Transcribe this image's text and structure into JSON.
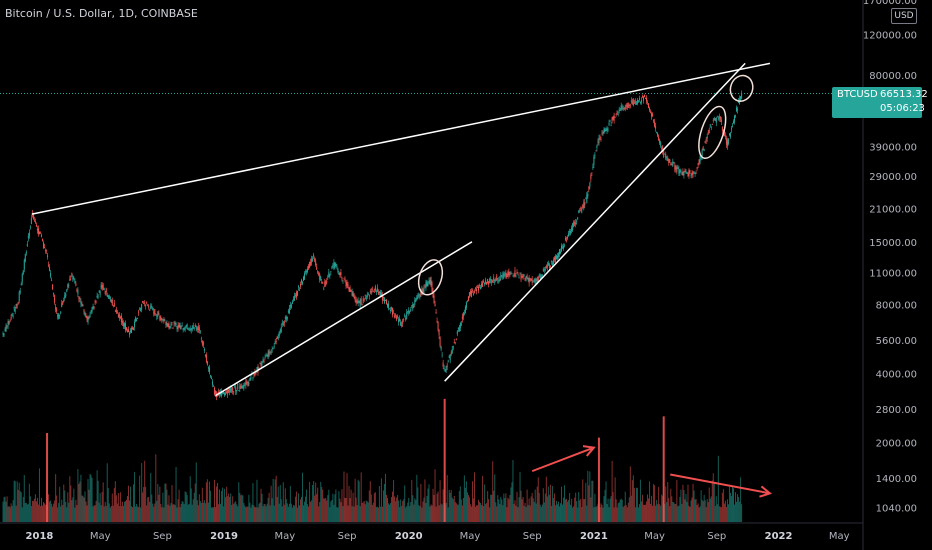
{
  "title": "Bitcoin / U.S. Dollar, 1D, COINBASE",
  "currency": "USD",
  "price_tag": {
    "symbol": "BTCUSD",
    "price": "66513.32",
    "countdown": "05:06:23"
  },
  "colors": {
    "up": "#26a69a",
    "down": "#ef5350",
    "trendline": "#ffffff",
    "arrow": "#f04f4f",
    "price_line": "#26a69a"
  },
  "chart_data": {
    "type": "candlestick",
    "title": "Bitcoin / U.S. Dollar, 1D, COINBASE",
    "y_scale": "log",
    "ylim": [
      900,
      170000
    ],
    "y_ticks": [
      "170000.00",
      "120000.00",
      "80000.00",
      "55000.00",
      "39000.00",
      "29000.00",
      "21000.00",
      "15000.00",
      "11000.00",
      "8000.00",
      "5600.00",
      "4000.00",
      "2800.00",
      "2000.00",
      "1400.00",
      "1040.00"
    ],
    "x_ticks": [
      "2018",
      "May",
      "Sep",
      "2019",
      "May",
      "Sep",
      "2020",
      "May",
      "Sep",
      "2021",
      "May",
      "Sep",
      "2022",
      "May"
    ],
    "x_range": [
      "2017-10-15",
      "2022-06-15"
    ],
    "last_price": 66513.32,
    "price_path": [
      [
        "2017-10-20",
        5900
      ],
      [
        "2017-11-20",
        8200
      ],
      [
        "2017-12-17",
        19800
      ],
      [
        "2018-01-15",
        13500
      ],
      [
        "2018-02-06",
        6900
      ],
      [
        "2018-03-05",
        11000
      ],
      [
        "2018-04-06",
        6700
      ],
      [
        "2018-05-05",
        9700
      ],
      [
        "2018-06-29",
        5900
      ],
      [
        "2018-07-25",
        8200
      ],
      [
        "2018-09-15",
        6500
      ],
      [
        "2018-11-12",
        6300
      ],
      [
        "2018-12-15",
        3200
      ],
      [
        "2019-02-15",
        3600
      ],
      [
        "2019-04-03",
        5000
      ],
      [
        "2019-05-15",
        8000
      ],
      [
        "2019-06-26",
        13000
      ],
      [
        "2019-07-16",
        9500
      ],
      [
        "2019-08-06",
        12000
      ],
      [
        "2019-09-24",
        8000
      ],
      [
        "2019-10-26",
        9500
      ],
      [
        "2019-12-17",
        6600
      ],
      [
        "2020-02-13",
        10400
      ],
      [
        "2020-03-12",
        4000
      ],
      [
        "2020-04-30",
        8800
      ],
      [
        "2020-06-01",
        10000
      ],
      [
        "2020-07-27",
        11000
      ],
      [
        "2020-09-05",
        10000
      ],
      [
        "2020-10-21",
        13000
      ],
      [
        "2020-12-17",
        23000
      ],
      [
        "2021-01-08",
        41000
      ],
      [
        "2021-02-21",
        57000
      ],
      [
        "2021-04-14",
        64000
      ],
      [
        "2021-05-19",
        36000
      ],
      [
        "2021-06-22",
        30000
      ],
      [
        "2021-07-20",
        30000
      ],
      [
        "2021-08-23",
        50000
      ],
      [
        "2021-09-07",
        52000
      ],
      [
        "2021-09-21",
        40000
      ],
      [
        "2021-10-20",
        66500
      ]
    ],
    "volume_highlights": [
      [
        "2018-01-16",
        2200
      ],
      [
        "2020-03-12",
        3100
      ],
      [
        "2021-01-11",
        2100
      ],
      [
        "2021-05-19",
        2600
      ]
    ],
    "annotations": {
      "trendlines": [
        [
          [
            "2017-12-17",
            19800
          ],
          [
            "2021-12-15",
            90000
          ]
        ],
        [
          [
            "2018-12-15",
            3200
          ],
          [
            "2020-05-05",
            15000
          ]
        ],
        [
          [
            "2020-03-12",
            3700
          ],
          [
            "2021-10-27",
            90000
          ]
        ]
      ],
      "ellipses": [
        [
          "2020-02-13",
          10500
        ],
        [
          "2021-08-23",
          45000
        ],
        [
          "2021-10-20",
          70000
        ]
      ],
      "arrows": [
        [
          [
            "2020-09-01",
            1500
          ],
          [
            "2021-01-01",
            1900
          ]
        ],
        [
          [
            "2021-06-01",
            1450
          ],
          [
            "2021-12-15",
            1200
          ]
        ]
      ]
    }
  }
}
